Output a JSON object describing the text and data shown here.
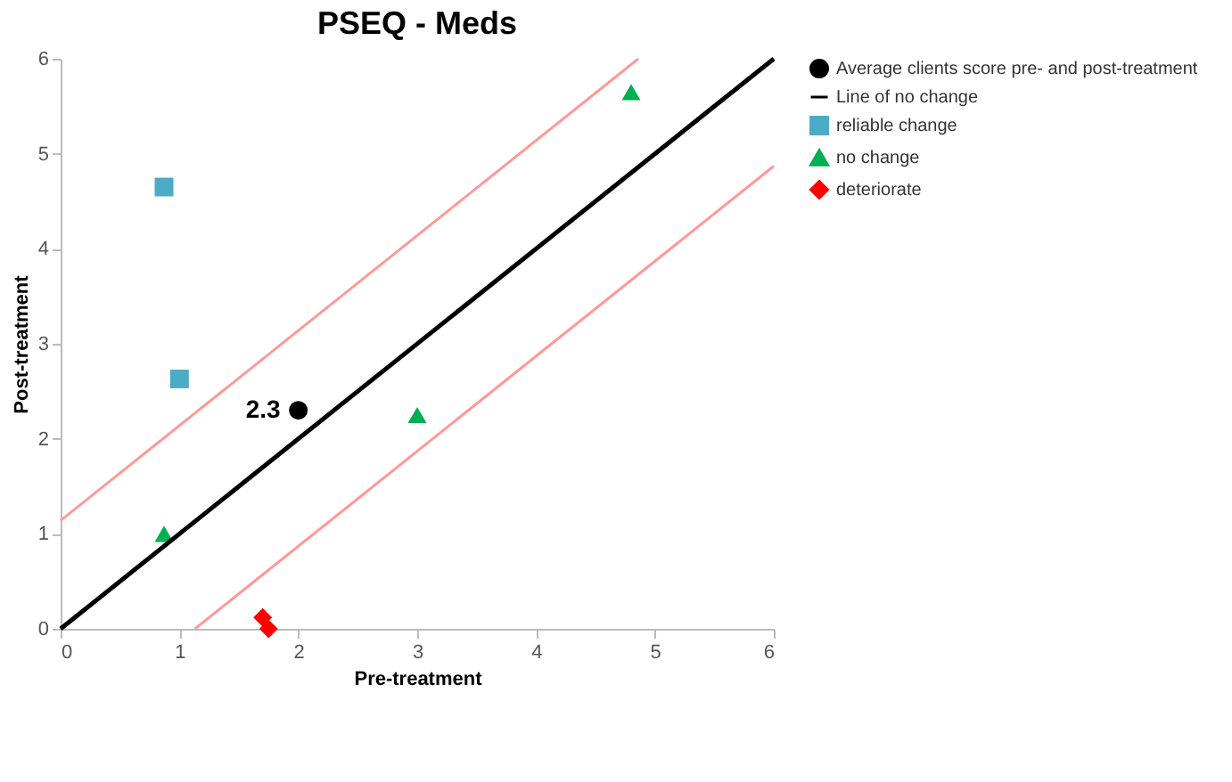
{
  "chart_data": {
    "type": "scatter",
    "title": "PSEQ - Meds",
    "xlabel": "Pre-treatment",
    "ylabel": "Post-treatment",
    "xlim": [
      0,
      6
    ],
    "ylim": [
      0,
      6
    ],
    "xticks": [
      0,
      1,
      2,
      3,
      4,
      5,
      6
    ],
    "yticks": [
      0,
      1,
      2,
      3,
      4,
      5,
      6
    ],
    "grid": false,
    "legend": "right",
    "series": [
      {
        "name": "Average clients score pre- and post-treatment",
        "type": "scatter",
        "marker": "circle",
        "color": "#000000",
        "x": [
          2
        ],
        "values": [
          2.3
        ]
      },
      {
        "name": "Line of no change",
        "type": "line",
        "marker": "none",
        "color": "#000000",
        "x": [
          0,
          6
        ],
        "values": [
          0,
          6
        ]
      },
      {
        "name": "reliable change",
        "type": "scatter",
        "marker": "square",
        "color": "#4bacc6",
        "x": [
          0.87,
          1.0
        ],
        "values": [
          4.65,
          2.63
        ]
      },
      {
        "name": "no change",
        "type": "scatter",
        "marker": "triangle",
        "color": "#00b050",
        "x": [
          0.87,
          3.0,
          4.8
        ],
        "values": [
          1.0,
          2.25,
          5.65
        ]
      },
      {
        "name": "deteriorate",
        "type": "scatter",
        "marker": "diamond",
        "color": "#ff0000",
        "x": [
          1.7,
          1.75
        ],
        "values": [
          0.12,
          0.0
        ]
      },
      {
        "type": "line",
        "marker": "none",
        "color": "#ff9999",
        "x": [
          0,
          4.86
        ],
        "values": [
          1.14,
          6
        ]
      },
      {
        "type": "line",
        "marker": "none",
        "color": "#ff9999",
        "x": [
          1.13,
          6
        ],
        "values": [
          0,
          4.87
        ]
      }
    ],
    "annotations": [
      {
        "text": "2.3",
        "x": 2,
        "y": 2.3
      }
    ]
  }
}
